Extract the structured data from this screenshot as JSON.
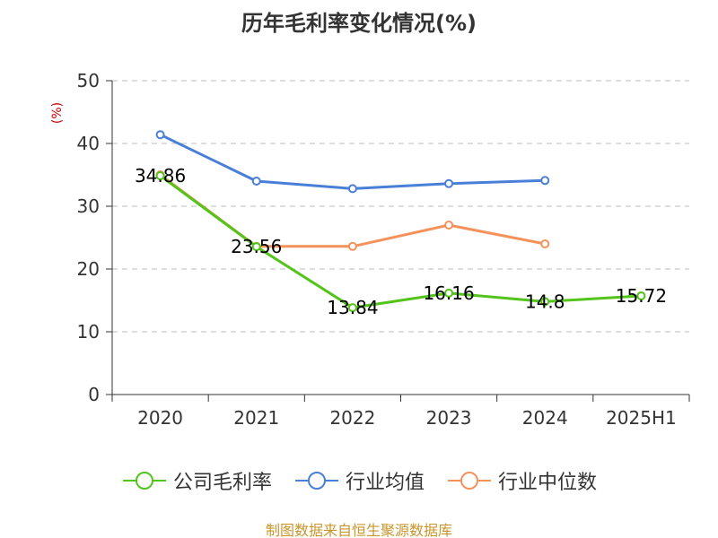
{
  "chart_data": {
    "type": "line",
    "title": "历年毛利率变化情况(%)",
    "ylabel": "(%)",
    "xlabel": "",
    "categories": [
      "2020",
      "2021",
      "2022",
      "2023",
      "2024",
      "2025H1"
    ],
    "ylim": [
      0,
      50
    ],
    "yticks": [
      0,
      10,
      20,
      30,
      40,
      50
    ],
    "grid": true,
    "legend_position": "bottom",
    "series": [
      {
        "name": "公司毛利率",
        "color": "#52c41a",
        "values": [
          34.86,
          23.56,
          13.84,
          16.16,
          14.8,
          15.72
        ],
        "labels": [
          "34.86",
          "23.56",
          "13.84",
          "16.16",
          "14.8",
          "15.72"
        ]
      },
      {
        "name": "行业均值",
        "color": "#4a7fd8",
        "values": [
          41.4,
          34.0,
          32.8,
          33.6,
          34.1,
          null
        ]
      },
      {
        "name": "行业中位数",
        "color": "#f5915a",
        "values": [
          35.0,
          23.6,
          23.6,
          27.0,
          24.0,
          null
        ]
      }
    ]
  },
  "source": "制图数据来自恒生聚源数据库"
}
